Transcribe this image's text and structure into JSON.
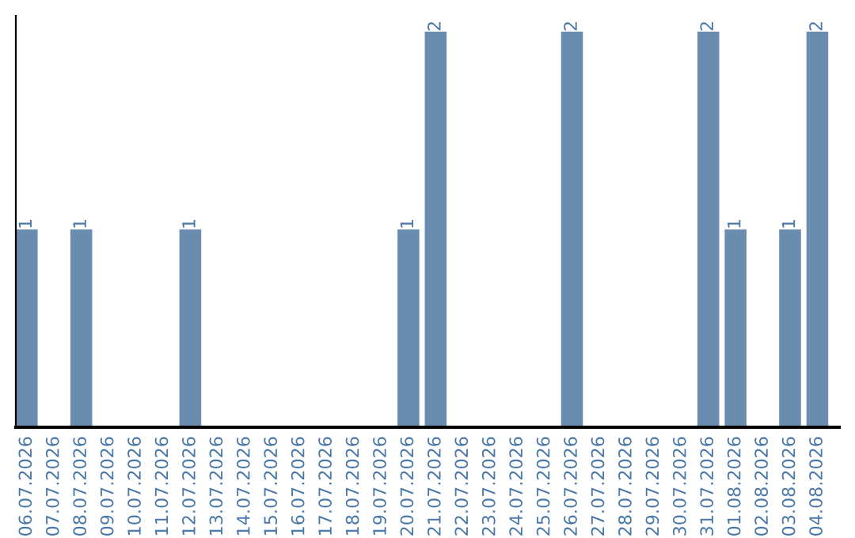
{
  "chart_data": {
    "type": "bar",
    "categories": [
      "06.07.2026",
      "07.07.2026",
      "08.07.2026",
      "09.07.2026",
      "10.07.2026",
      "11.07.2026",
      "12.07.2026",
      "13.07.2026",
      "14.07.2026",
      "15.07.2026",
      "16.07.2026",
      "17.07.2026",
      "18.07.2026",
      "19.07.2026",
      "20.07.2026",
      "21.07.2026",
      "22.07.2026",
      "23.07.2026",
      "24.07.2026",
      "25.07.2026",
      "26.07.2026",
      "27.07.2026",
      "28.07.2026",
      "29.07.2026",
      "30.07.2026",
      "31.07.2026",
      "01.08.2026",
      "02.08.2026",
      "03.08.2026",
      "04.08.2026"
    ],
    "values": [
      1,
      0,
      1,
      0,
      0,
      0,
      1,
      0,
      0,
      0,
      0,
      0,
      0,
      0,
      1,
      2,
      0,
      0,
      0,
      0,
      2,
      0,
      0,
      0,
      0,
      2,
      1,
      0,
      1,
      2
    ],
    "color": "#6a8caf",
    "value_labels": [
      "1",
      null,
      "1",
      null,
      null,
      null,
      "1",
      null,
      null,
      null,
      null,
      null,
      null,
      null,
      "1",
      "2",
      null,
      null,
      null,
      null,
      "2",
      null,
      null,
      null,
      null,
      "2",
      "1",
      null,
      "1",
      "2"
    ],
    "grid": false,
    "legend": false
  }
}
